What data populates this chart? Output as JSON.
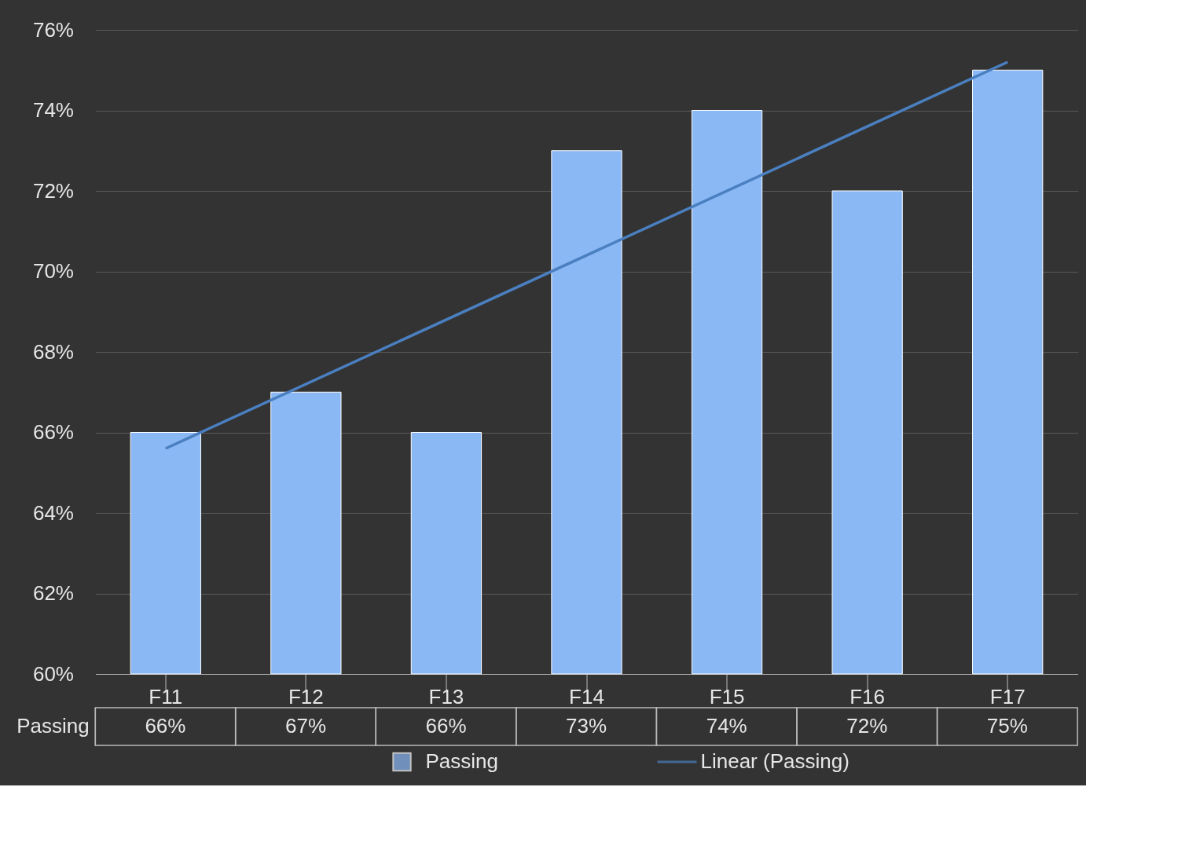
{
  "chart_data": {
    "type": "bar",
    "categories": [
      "F11",
      "F12",
      "F13",
      "F14",
      "F15",
      "F16",
      "F17"
    ],
    "series": [
      {
        "name": "Passing",
        "color": "#8ab8f5",
        "values": [
          66,
          67,
          66,
          73,
          74,
          72,
          75
        ],
        "value_labels": [
          "66%",
          "67%",
          "66%",
          "73%",
          "74%",
          "72%",
          "75%"
        ]
      },
      {
        "name": "Linear (Passing)",
        "type": "line",
        "color": "#4a7fc0",
        "x": [
          "F11",
          "F17"
        ],
        "values": [
          65.6,
          75.2
        ]
      }
    ],
    "ylim": [
      60,
      76
    ],
    "yticks": [
      {
        "value": 60,
        "label": "60%"
      },
      {
        "value": 62,
        "label": "62%"
      },
      {
        "value": 64,
        "label": "64%"
      },
      {
        "value": 66,
        "label": "66%"
      },
      {
        "value": 68,
        "label": "68%"
      },
      {
        "value": 70,
        "label": "70%"
      },
      {
        "value": 72,
        "label": "72%"
      },
      {
        "value": 74,
        "label": "74%"
      },
      {
        "value": 76,
        "label": "76%"
      }
    ],
    "grid": "y",
    "legend": "bottom"
  }
}
